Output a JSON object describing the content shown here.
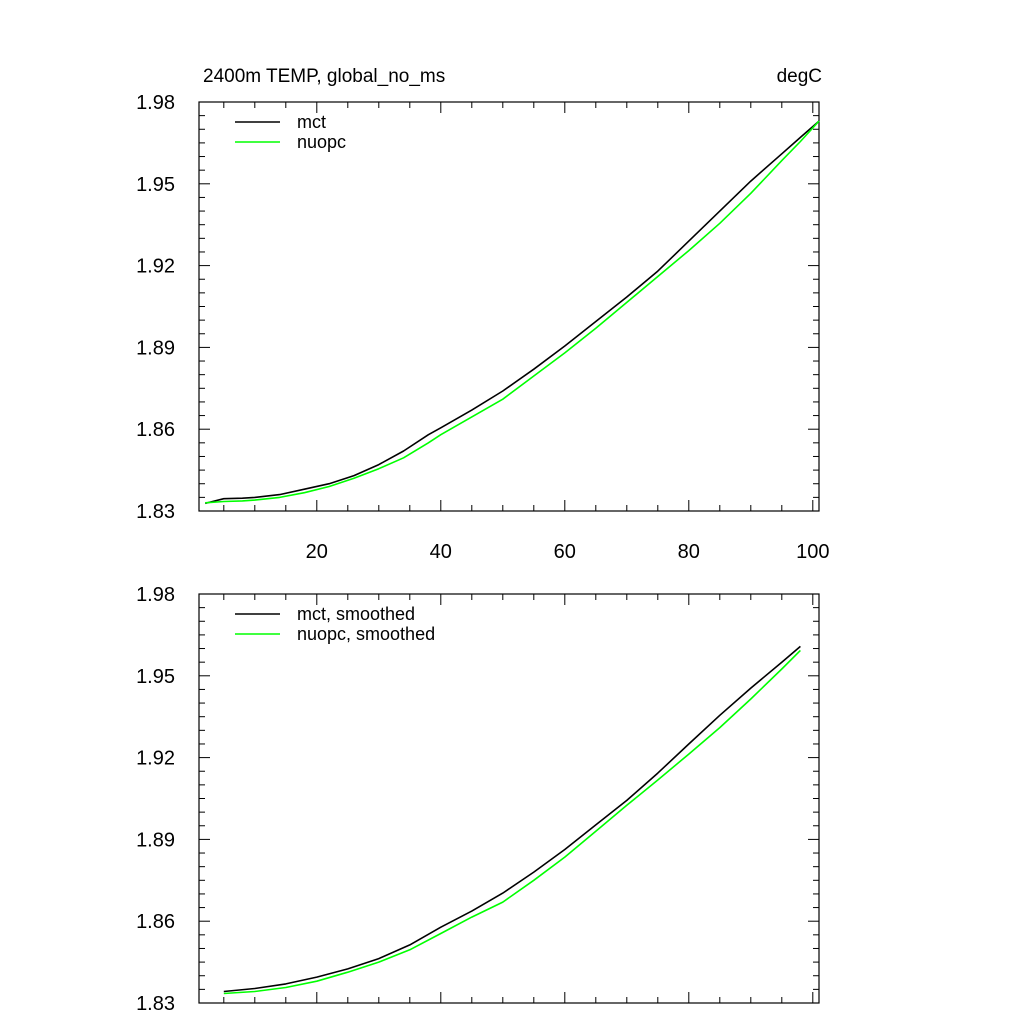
{
  "chart_data": [
    {
      "type": "line",
      "title": "2400m TEMP, global_no_ms",
      "units": "degC",
      "xlim": [
        1,
        101
      ],
      "ylim": [
        1.83,
        1.98
      ],
      "xticks": [
        20,
        40,
        60,
        80,
        100
      ],
      "yticks": [
        1.83,
        1.86,
        1.89,
        1.92,
        1.95,
        1.98
      ],
      "xticklabels": [
        "20",
        "40",
        "60",
        "80",
        "100"
      ],
      "yticklabels": [
        "1.83",
        "1.86",
        "1.89",
        "1.92",
        "1.95",
        "1.98"
      ],
      "legend_position": "top-left",
      "series": [
        {
          "name": "mct",
          "color": "#000000",
          "x": [
            2,
            5,
            8,
            10,
            14,
            18,
            22,
            26,
            30,
            34,
            38,
            40,
            45,
            50,
            55,
            60,
            65,
            70,
            75,
            80,
            85,
            90,
            95,
            98,
            101
          ],
          "y": [
            1.8328,
            1.8345,
            1.8347,
            1.835,
            1.836,
            1.838,
            1.84,
            1.843,
            1.847,
            1.852,
            1.858,
            1.8605,
            1.867,
            1.874,
            1.882,
            1.8905,
            1.8995,
            1.9085,
            1.918,
            1.929,
            1.94,
            1.951,
            1.961,
            1.967,
            1.973
          ]
        },
        {
          "name": "nuopc",
          "color": "#00ff00",
          "x": [
            2,
            5,
            8,
            10,
            14,
            18,
            22,
            26,
            30,
            34,
            38,
            40,
            45,
            50,
            55,
            60,
            65,
            70,
            75,
            80,
            85,
            90,
            95,
            98,
            101
          ],
          "y": [
            1.833,
            1.8335,
            1.8337,
            1.834,
            1.835,
            1.8367,
            1.839,
            1.842,
            1.8455,
            1.8495,
            1.855,
            1.858,
            1.8645,
            1.871,
            1.8795,
            1.888,
            1.897,
            1.9065,
            1.916,
            1.9255,
            1.9355,
            1.9465,
            1.9585,
            1.9655,
            1.973
          ]
        }
      ]
    },
    {
      "type": "line",
      "xlim": [
        1,
        101
      ],
      "ylim": [
        1.83,
        1.98
      ],
      "xticks": [
        20,
        40,
        60,
        80,
        100
      ],
      "yticks": [
        1.83,
        1.86,
        1.89,
        1.92,
        1.95,
        1.98
      ],
      "yticklabels": [
        "1.83",
        "1.86",
        "1.89",
        "1.92",
        "1.95",
        "1.98"
      ],
      "legend_position": "top-left",
      "series": [
        {
          "name": "mct, smoothed",
          "color": "#000000",
          "x": [
            5,
            10,
            15,
            20,
            25,
            30,
            35,
            40,
            45,
            50,
            55,
            60,
            65,
            70,
            75,
            80,
            85,
            90,
            95,
            98
          ],
          "y": [
            1.8342,
            1.8353,
            1.837,
            1.8395,
            1.8425,
            1.8463,
            1.8513,
            1.8578,
            1.8637,
            1.8703,
            1.878,
            1.8863,
            1.8953,
            1.9043,
            1.9143,
            1.925,
            1.9355,
            1.9455,
            1.955,
            1.9608
          ]
        },
        {
          "name": "nuopc, smoothed",
          "color": "#00ff00",
          "x": [
            5,
            10,
            15,
            20,
            25,
            30,
            35,
            40,
            45,
            50,
            55,
            60,
            65,
            70,
            75,
            80,
            85,
            90,
            95,
            98
          ],
          "y": [
            1.8335,
            1.8342,
            1.8357,
            1.838,
            1.8413,
            1.845,
            1.8495,
            1.8555,
            1.8615,
            1.867,
            1.875,
            1.8835,
            1.893,
            1.9025,
            1.9118,
            1.9213,
            1.931,
            1.9415,
            1.9525,
            1.9593
          ]
        }
      ]
    }
  ]
}
